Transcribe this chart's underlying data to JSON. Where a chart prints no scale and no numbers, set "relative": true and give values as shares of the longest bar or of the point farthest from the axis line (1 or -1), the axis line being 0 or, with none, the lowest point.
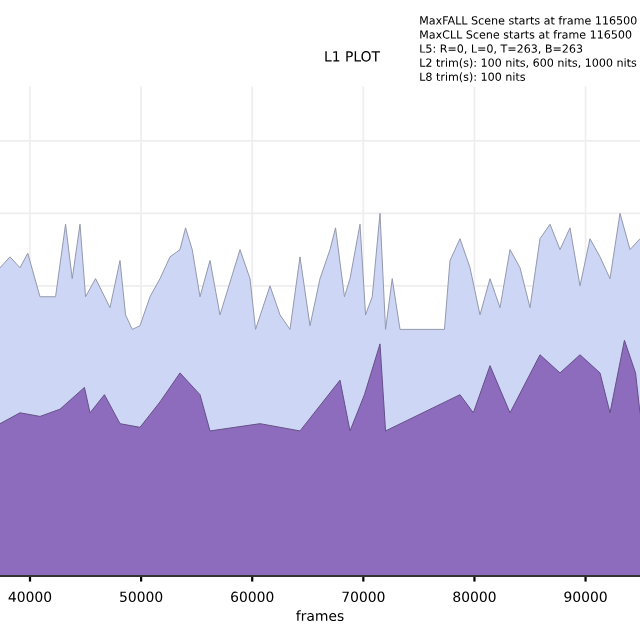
{
  "chart_data": {
    "type": "area",
    "title": "L1 PLOT",
    "xlabel": "frames",
    "relative": true,
    "grid": true,
    "tick_labels": "x",
    "legend": false,
    "annotations": [
      "MaxFALL Scene starts at frame 116500",
      "MaxCLL Scene starts at frame 116500",
      "L5: R=0, L=0, T=263, B=263",
      "L2 trim(s): 100 nits, 600 nits, 1000 nits",
      "L8 trim(s): 100 nits"
    ],
    "xlim": [
      37300,
      94900
    ],
    "xticks": [
      40000,
      50000,
      60000,
      70000,
      80000,
      90000
    ],
    "series": [
      {
        "color": "#cdd6f4",
        "x": [
          37300,
          38200,
          39100,
          39800,
          40900,
          42300,
          43200,
          43800,
          44500,
          45000,
          45900,
          47200,
          48100,
          48600,
          49200,
          49900,
          50800,
          51700,
          52600,
          53500,
          54000,
          54600,
          55300,
          56200,
          57100,
          58900,
          59800,
          60300,
          61600,
          62500,
          63400,
          64300,
          65200,
          66100,
          67000,
          67500,
          68300,
          68800,
          69700,
          70200,
          70800,
          71500,
          72000,
          72600,
          73300,
          77300,
          77800,
          78700,
          79600,
          80500,
          81400,
          82300,
          83200,
          84100,
          85000,
          85900,
          86800,
          87700,
          88600,
          89500,
          90400,
          91300,
          92200,
          93100,
          94000,
          94900
        ],
        "values": [
          0.85,
          0.88,
          0.85,
          0.89,
          0.77,
          0.77,
          0.97,
          0.82,
          0.97,
          0.77,
          0.82,
          0.74,
          0.87,
          0.72,
          0.68,
          0.69,
          0.77,
          0.82,
          0.88,
          0.9,
          0.96,
          0.9,
          0.77,
          0.87,
          0.72,
          0.9,
          0.82,
          0.68,
          0.8,
          0.72,
          0.68,
          0.88,
          0.69,
          0.82,
          0.9,
          0.96,
          0.77,
          0.82,
          0.97,
          0.72,
          0.77,
          1.0,
          0.68,
          0.82,
          0.68,
          0.68,
          0.87,
          0.93,
          0.85,
          0.72,
          0.82,
          0.74,
          0.9,
          0.85,
          0.74,
          0.93,
          0.97,
          0.9,
          0.96,
          0.8,
          0.93,
          0.88,
          0.82,
          1.0,
          0.9,
          0.93
        ]
      },
      {
        "color": "#8d6cbd",
        "x": [
          37300,
          39100,
          40900,
          42700,
          44900,
          45400,
          46700,
          48100,
          49900,
          51700,
          53500,
          55300,
          56200,
          60700,
          64300,
          67900,
          68800,
          70100,
          71500,
          72000,
          78700,
          79900,
          81400,
          83200,
          85900,
          87700,
          89500,
          91300,
          92200,
          93500,
          94500,
          94900
        ],
        "values": [
          0.42,
          0.45,
          0.44,
          0.46,
          0.52,
          0.45,
          0.5,
          0.42,
          0.41,
          0.48,
          0.56,
          0.5,
          0.4,
          0.42,
          0.4,
          0.54,
          0.4,
          0.5,
          0.64,
          0.4,
          0.5,
          0.45,
          0.58,
          0.45,
          0.61,
          0.56,
          0.61,
          0.56,
          0.45,
          0.65,
          0.56,
          0.45
        ]
      }
    ]
  }
}
